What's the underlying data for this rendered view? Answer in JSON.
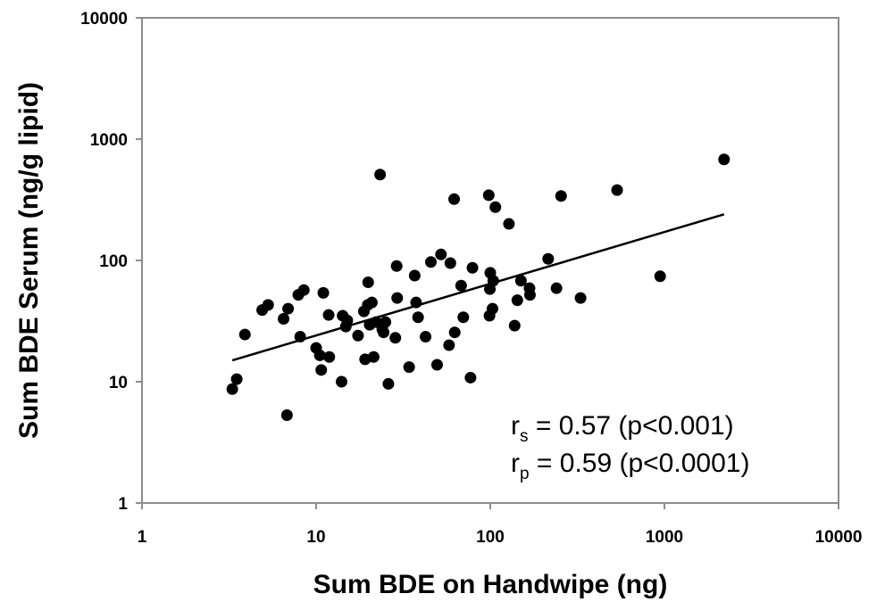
{
  "chart_data": {
    "type": "scatter",
    "xlabel": "Sum BDE on Handwipe (ng)",
    "ylabel": "Sum BDE Serum (ng/g lipid)",
    "x_scale": "log",
    "y_scale": "log",
    "xlim": [
      1,
      10000
    ],
    "ylim": [
      1,
      10000
    ],
    "x_ticks": [
      "1",
      "10",
      "100",
      "1000",
      "10000"
    ],
    "y_ticks": [
      "1",
      "10",
      "100",
      "1000",
      "10000"
    ],
    "grid": false,
    "legend": "none",
    "marker_color": "#000000",
    "trendline": {
      "x": [
        3.3,
        2200
      ],
      "y": [
        15,
        240
      ]
    },
    "annotations": [
      {
        "main": "r",
        "sub": "s",
        "text": " = 0.57 (p<0.001)"
      },
      {
        "main": "r",
        "sub": "p",
        "text": " = 0.59 (p<0.0001)"
      }
    ],
    "series": [
      {
        "points": [
          [
            3.3,
            8.7
          ],
          [
            3.5,
            10.5
          ],
          [
            3.9,
            24.5
          ],
          [
            4.9,
            39
          ],
          [
            5.3,
            43
          ],
          [
            6.5,
            33
          ],
          [
            6.8,
            5.3
          ],
          [
            6.9,
            40
          ],
          [
            7.9,
            52
          ],
          [
            8.1,
            23.5
          ],
          [
            8.5,
            57
          ],
          [
            10,
            19
          ],
          [
            10.5,
            16.5
          ],
          [
            10.7,
            12.5
          ],
          [
            11,
            54
          ],
          [
            11.8,
            35.5
          ],
          [
            11.9,
            16
          ],
          [
            14,
            10
          ],
          [
            14.2,
            35
          ],
          [
            14.8,
            28.5
          ],
          [
            15.1,
            32
          ],
          [
            17.4,
            24
          ],
          [
            18.8,
            38
          ],
          [
            19.1,
            15.3
          ],
          [
            19.8,
            43
          ],
          [
            19.9,
            66
          ],
          [
            20.3,
            29.5
          ],
          [
            20.9,
            45
          ],
          [
            21.4,
            16
          ],
          [
            22.1,
            31
          ],
          [
            23.3,
            510
          ],
          [
            24,
            27
          ],
          [
            24.4,
            25.5
          ],
          [
            25,
            31
          ],
          [
            26,
            9.6
          ],
          [
            28.5,
            23
          ],
          [
            29,
            90
          ],
          [
            29.2,
            49
          ],
          [
            34.2,
            13.2
          ],
          [
            36.8,
            75
          ],
          [
            37.5,
            45
          ],
          [
            38.5,
            34
          ],
          [
            42.5,
            23.5
          ],
          [
            45.6,
            97
          ],
          [
            49.5,
            13.8
          ],
          [
            52.1,
            112
          ],
          [
            58,
            20
          ],
          [
            59,
            95
          ],
          [
            62,
            320
          ],
          [
            62.5,
            25.5
          ],
          [
            68,
            62
          ],
          [
            70,
            34
          ],
          [
            77,
            10.8
          ],
          [
            79,
            87
          ],
          [
            98,
            345
          ],
          [
            99,
            35
          ],
          [
            99.5,
            58
          ],
          [
            100,
            79
          ],
          [
            103,
            40
          ],
          [
            104,
            68
          ],
          [
            107,
            275
          ],
          [
            128,
            200
          ],
          [
            138,
            29
          ],
          [
            143,
            47
          ],
          [
            150,
            68
          ],
          [
            168,
            59
          ],
          [
            169,
            52
          ],
          [
            215,
            103
          ],
          [
            240,
            59
          ],
          [
            255,
            340
          ],
          [
            330,
            49
          ],
          [
            535,
            380
          ],
          [
            945,
            74
          ],
          [
            2200,
            680
          ]
        ]
      }
    ]
  }
}
